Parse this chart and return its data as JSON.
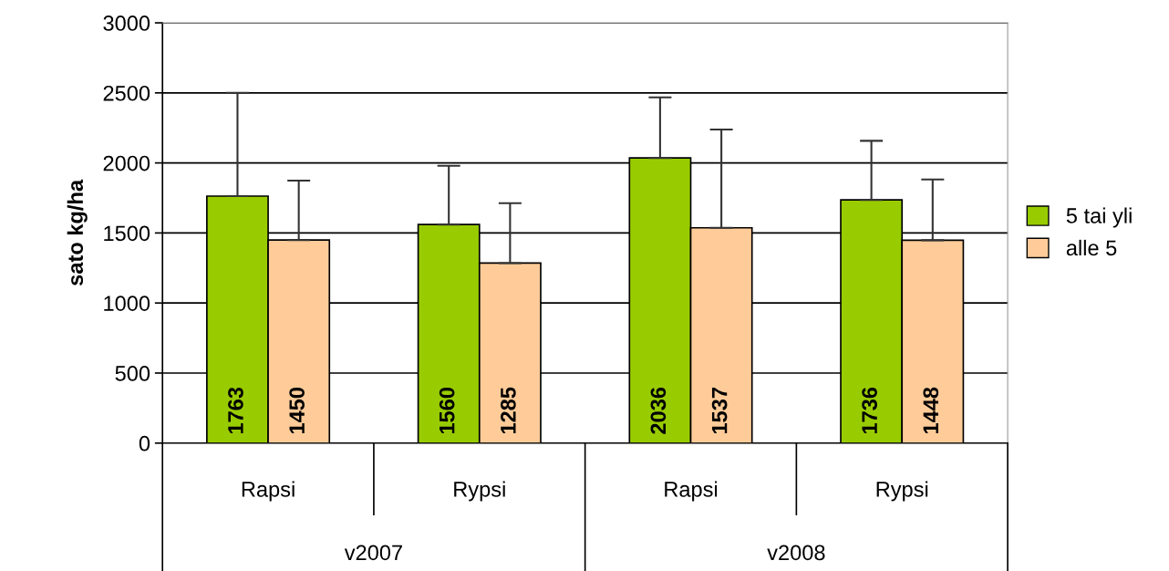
{
  "chart_data": {
    "type": "bar",
    "ylabel": "sato kg/ha",
    "categories": [
      "Rapsi",
      "Rypsi",
      "Rapsi",
      "Rypsi"
    ],
    "series": [
      {
        "name": "5 tai yli",
        "color": "#99cc00",
        "values": [
          1763,
          1560,
          2036,
          1736
        ],
        "errors": [
          [
            1763,
            2500
          ],
          [
            1560,
            1980
          ],
          [
            2036,
            2468
          ],
          [
            1736,
            2158
          ]
        ]
      },
      {
        "name": "alle 5",
        "color": "#ffcc99",
        "values": [
          1450,
          1285,
          1537,
          1448
        ],
        "errors": [
          [
            1450,
            1874
          ],
          [
            1285,
            1713
          ],
          [
            1537,
            2238
          ],
          [
            1448,
            1882
          ]
        ]
      }
    ],
    "annotations": [
      "v2007",
      "v2008"
    ],
    "ylim": [
      0,
      3000
    ],
    "yticks": [
      0,
      500,
      1000,
      1500,
      2000,
      2500,
      3000
    ],
    "grid": "y",
    "legend": "right",
    "data_labels": true
  }
}
